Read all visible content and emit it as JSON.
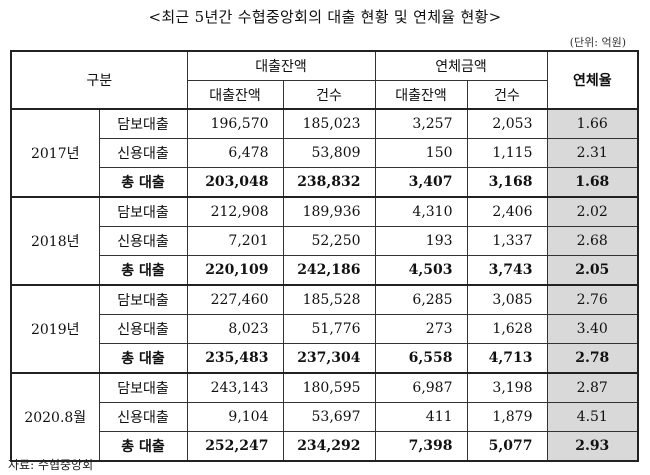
{
  "title": "<최근 5년간 수협중앙회의 대출 현황 및 연체율 현황>",
  "unit": "(단위: 억원)",
  "header": {
    "category": "구분",
    "loan_balance": "대출잔액",
    "overdue_amount": "연체금액",
    "delinquency_rate": "연체율",
    "sub_balance": "대출잔액",
    "sub_count": "건수"
  },
  "groups": [
    {
      "year": "2017년",
      "rows": [
        {
          "type": "담보대출",
          "lb": "196,570",
          "lc": "185,023",
          "ob": "3,257",
          "oc": "2,053",
          "rate": "1.66"
        },
        {
          "type": "신용대출",
          "lb": "6,478",
          "lc": "53,809",
          "ob": "150",
          "oc": "1,115",
          "rate": "2.31"
        },
        {
          "type": "총 대출",
          "lb": "203,048",
          "lc": "238,832",
          "ob": "3,407",
          "oc": "3,168",
          "rate": "1.68"
        }
      ]
    },
    {
      "year": "2018년",
      "rows": [
        {
          "type": "담보대출",
          "lb": "212,908",
          "lc": "189,936",
          "ob": "4,310",
          "oc": "2,406",
          "rate": "2.02"
        },
        {
          "type": "신용대출",
          "lb": "7,201",
          "lc": "52,250",
          "ob": "193",
          "oc": "1,337",
          "rate": "2.68"
        },
        {
          "type": "총 대출",
          "lb": "220,109",
          "lc": "242,186",
          "ob": "4,503",
          "oc": "3,743",
          "rate": "2.05"
        }
      ]
    },
    {
      "year": "2019년",
      "rows": [
        {
          "type": "담보대출",
          "lb": "227,460",
          "lc": "185,528",
          "ob": "6,285",
          "oc": "3,085",
          "rate": "2.76"
        },
        {
          "type": "신용대출",
          "lb": "8,023",
          "lc": "51,776",
          "ob": "273",
          "oc": "1,628",
          "rate": "3.40"
        },
        {
          "type": "총 대출",
          "lb": "235,483",
          "lc": "237,304",
          "ob": "6,558",
          "oc": "4,713",
          "rate": "2.78"
        }
      ]
    },
    {
      "year": "2020.8월",
      "rows": [
        {
          "type": "담보대출",
          "lb": "243,143",
          "lc": "180,595",
          "ob": "6,987",
          "oc": "3,198",
          "rate": "2.87"
        },
        {
          "type": "신용대출",
          "lb": "9,104",
          "lc": "53,697",
          "ob": "411",
          "oc": "1,879",
          "rate": "4.51"
        },
        {
          "type": "총 대출",
          "lb": "252,247",
          "lc": "234,292",
          "ob": "7,398",
          "oc": "5,077",
          "rate": "2.93"
        }
      ]
    }
  ],
  "source": "자료: 수협중앙회"
}
